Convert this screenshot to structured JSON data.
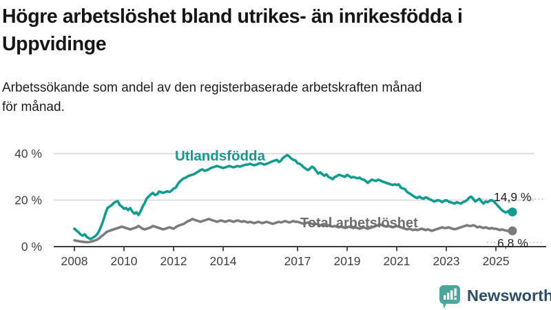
{
  "header": {
    "title_lines": [
      "Högre arbetslöshet bland utrikes- än inrikesfödda i",
      "Uppvidinge"
    ],
    "subtitle_lines": [
      "Arbetssökande som andel av den registerbaserade arbetskraften månad",
      "för månad."
    ]
  },
  "branding": {
    "logo_text": "Newsworthy",
    "logo_icon": "bar-chart-speech-bubble-icon",
    "icon_color": "#4aa59d",
    "text_color": "#2b4d68"
  },
  "chart_data": {
    "type": "line",
    "title": "Högre arbetslöshet bland utrikes- än inrikesfödda i Uppvidinge",
    "subtitle": "Arbetssökande som andel av den registerbaserade arbetskraften månad för månad.",
    "x_start_year": 2008.0,
    "x_step_months": 1,
    "x_ticks": [
      2008,
      2010,
      2012,
      2014,
      2017,
      2019,
      2021,
      2023,
      2025
    ],
    "y_ticks": [
      {
        "value": 0,
        "label": "0 %"
      },
      {
        "value": 20,
        "label": "20 %"
      },
      {
        "value": 40,
        "label": "40 %"
      }
    ],
    "ylim": [
      0,
      43
    ],
    "grid": "horizontal",
    "legend_position": "inline-labels",
    "grid_color": "#d9d9d9",
    "axis_color": "#3b3b3b",
    "series": [
      {
        "name": "Utlandsfödda",
        "color": "#0d9c8e",
        "end_label": "14,9 %",
        "end_value": 14.9,
        "values": [
          7.7,
          6.9,
          6.2,
          5.2,
          4.7,
          5.3,
          4.2,
          3.6,
          3.3,
          3.9,
          4.4,
          5.3,
          6.8,
          8.9,
          11.3,
          14.2,
          16.6,
          17.2,
          17.8,
          18.7,
          19.3,
          19.6,
          17.8,
          17.2,
          16.3,
          16.6,
          15.7,
          16.6,
          15.1,
          14.2,
          14.8,
          13.6,
          15.1,
          17.2,
          18.7,
          20.7,
          21.6,
          22.5,
          23.1,
          22.2,
          22.5,
          23.7,
          23.4,
          23.1,
          23.5,
          23.8,
          23.5,
          24.1,
          25.0,
          25.3,
          26.8,
          28.0,
          28.8,
          29.4,
          29.7,
          30.3,
          30.6,
          30.9,
          31.2,
          31.8,
          32.3,
          32.9,
          33.2,
          32.6,
          32.9,
          33.2,
          33.8,
          34.1,
          34.4,
          34.7,
          34.4,
          34.1,
          33.8,
          34.1,
          34.4,
          34.7,
          34.4,
          34.1,
          34.4,
          34.7,
          34.4,
          34.7,
          35.0,
          35.3,
          35.3,
          35.6,
          35.3,
          35.0,
          35.3,
          35.6,
          35.9,
          35.6,
          35.3,
          35.6,
          35.9,
          36.4,
          36.7,
          37.0,
          37.3,
          36.4,
          37.0,
          38.2,
          38.8,
          39.4,
          38.8,
          37.9,
          37.3,
          37.0,
          35.9,
          35.6,
          35.0,
          34.1,
          33.5,
          32.9,
          33.5,
          34.4,
          33.8,
          32.6,
          31.4,
          32.0,
          31.1,
          30.5,
          31.1,
          29.9,
          29.6,
          29.0,
          30.0,
          30.3,
          30.9,
          30.6,
          30.3,
          30.0,
          30.9,
          30.3,
          29.7,
          30.0,
          29.7,
          29.4,
          29.7,
          29.0,
          28.8,
          28.2,
          27.4,
          28.2,
          28.8,
          28.5,
          28.2,
          28.8,
          28.5,
          28.0,
          27.7,
          27.4,
          27.1,
          26.8,
          26.5,
          26.8,
          26.5,
          26.8,
          25.3,
          25.0,
          24.7,
          23.5,
          23.0,
          22.4,
          21.8,
          21.2,
          20.9,
          21.5,
          20.9,
          20.6,
          21.2,
          20.9,
          20.3,
          20.0,
          19.4,
          19.7,
          20.0,
          19.7,
          19.1,
          19.7,
          20.0,
          19.4,
          19.1,
          18.8,
          18.5,
          19.1,
          18.8,
          18.5,
          19.1,
          19.4,
          20.0,
          21.0,
          21.5,
          20.6,
          19.4,
          20.0,
          20.6,
          19.4,
          18.5,
          19.4,
          19.1,
          19.7,
          20.0,
          19.4,
          18.5,
          17.5,
          16.5,
          15.6,
          15.0,
          14.7,
          15.3,
          14.6,
          14.9
        ]
      },
      {
        "name": "Total arbetslöshet",
        "color": "#7b7b7e",
        "end_label": "6,8 %",
        "end_value": 6.8,
        "values": [
          2.7,
          2.5,
          2.4,
          2.2,
          2.1,
          2.0,
          1.9,
          2.0,
          2.1,
          2.4,
          2.7,
          3.0,
          3.6,
          4.4,
          5.0,
          5.9,
          6.5,
          6.8,
          7.1,
          7.4,
          7.7,
          8.0,
          8.3,
          8.6,
          8.3,
          8.0,
          7.7,
          7.4,
          7.7,
          8.0,
          8.3,
          8.9,
          8.3,
          7.7,
          7.4,
          7.7,
          8.0,
          8.3,
          8.9,
          8.6,
          8.3,
          8.0,
          7.7,
          7.4,
          7.7,
          8.0,
          8.3,
          8.0,
          7.7,
          8.3,
          8.9,
          9.2,
          9.5,
          9.8,
          10.4,
          11.0,
          11.3,
          11.9,
          11.6,
          11.3,
          11.0,
          10.7,
          11.0,
          11.3,
          11.6,
          11.9,
          11.6,
          11.3,
          11.0,
          10.7,
          11.0,
          11.3,
          11.0,
          10.7,
          11.0,
          11.3,
          11.0,
          10.7,
          11.0,
          11.3,
          11.0,
          10.7,
          11.0,
          10.7,
          10.4,
          10.7,
          10.4,
          10.1,
          10.4,
          10.7,
          10.4,
          10.1,
          10.4,
          10.7,
          10.4,
          10.1,
          9.8,
          10.1,
          10.4,
          10.7,
          10.4,
          10.7,
          11.0,
          10.7,
          10.4,
          10.7,
          11.0,
          10.7,
          10.7,
          10.4,
          10.1,
          9.8,
          10.1,
          10.4,
          10.1,
          9.8,
          9.5,
          9.8,
          9.5,
          9.2,
          9.5,
          9.2,
          8.9,
          9.2,
          8.9,
          8.6,
          8.9,
          8.6,
          8.3,
          8.6,
          8.3,
          8.0,
          8.3,
          8.6,
          8.3,
          8.0,
          8.3,
          8.0,
          7.7,
          8.0,
          8.3,
          8.0,
          7.7,
          8.0,
          8.3,
          8.6,
          8.9,
          9.2,
          9.5,
          9.2,
          8.9,
          8.6,
          8.9,
          8.6,
          8.3,
          8.6,
          8.9,
          8.6,
          8.3,
          8.0,
          7.7,
          7.4,
          7.7,
          7.4,
          7.1,
          7.4,
          7.1,
          7.4,
          7.7,
          7.4,
          7.1,
          7.4,
          7.1,
          6.8,
          7.1,
          7.4,
          7.7,
          8.0,
          8.3,
          8.0,
          8.0,
          8.3,
          8.0,
          7.7,
          7.5,
          7.7,
          8.0,
          8.3,
          8.6,
          8.9,
          9.2,
          8.9,
          8.9,
          9.2,
          8.9,
          8.3,
          8.6,
          8.3,
          8.0,
          8.3,
          8.0,
          7.7,
          8.0,
          7.7,
          7.7,
          7.4,
          7.1,
          7.4,
          7.1,
          6.9,
          6.7,
          7.0,
          6.8
        ]
      }
    ]
  }
}
